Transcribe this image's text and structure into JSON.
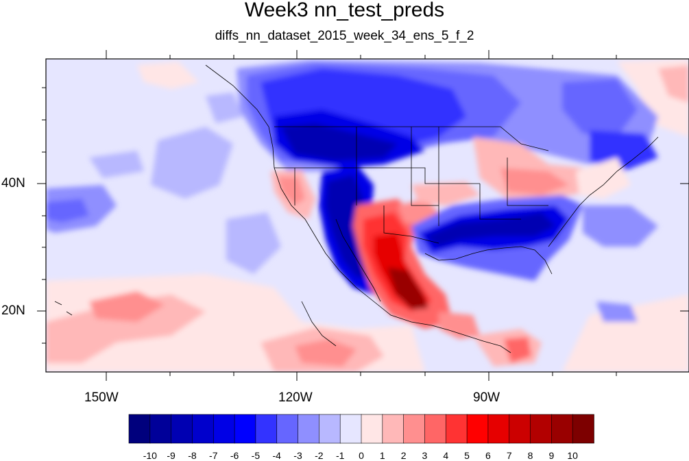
{
  "title": "Week3 nn_test_preds",
  "subtitle": "diffs_nn_dataset_2015_week_34_ens_5_f_2",
  "map": {
    "lon_labels": [
      "150W",
      "120W",
      "90W"
    ],
    "lat_labels": [
      "40N",
      "20N"
    ]
  },
  "colorbar": {
    "labels": [
      "-10",
      "-9",
      "-8",
      "-7",
      "-6",
      "-5",
      "-4",
      "-3",
      "-2",
      "-1",
      "0",
      "1",
      "2",
      "3",
      "4",
      "5",
      "6",
      "7",
      "8",
      "9",
      "10"
    ],
    "colors": [
      "#00007d",
      "#000099",
      "#0000b2",
      "#0000cc",
      "#0000e6",
      "#0000ff",
      "#3333ff",
      "#6666ff",
      "#8f8fff",
      "#b8b8ff",
      "#e6e6ff",
      "#ffe6e6",
      "#ffb8b8",
      "#ff8f8f",
      "#ff6666",
      "#ff3333",
      "#ff0000",
      "#e60000",
      "#cc0000",
      "#b20000",
      "#990000",
      "#7d0000"
    ]
  }
}
